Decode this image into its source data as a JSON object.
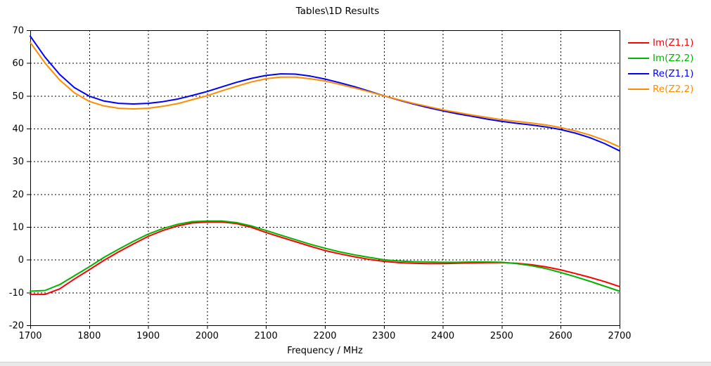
{
  "chart_data": {
    "type": "line",
    "title": "Tables\\1D Results",
    "xlabel": "Frequency / MHz",
    "ylabel": "",
    "xlim": [
      1700,
      2700
    ],
    "ylim": [
      -20,
      70
    ],
    "xticks": [
      1700,
      1800,
      1900,
      2000,
      2100,
      2200,
      2300,
      2400,
      2500,
      2600,
      2700
    ],
    "yticks": [
      70,
      60,
      50,
      40,
      30,
      20,
      10,
      0,
      -10,
      -20
    ],
    "grid": "dashed",
    "legend_position": "outside-top-right",
    "x": [
      1700,
      1725,
      1750,
      1775,
      1800,
      1825,
      1850,
      1875,
      1900,
      1925,
      1950,
      1975,
      2000,
      2025,
      2050,
      2075,
      2100,
      2125,
      2150,
      2175,
      2200,
      2225,
      2250,
      2275,
      2300,
      2325,
      2350,
      2375,
      2400,
      2425,
      2450,
      2475,
      2500,
      2525,
      2550,
      2575,
      2600,
      2625,
      2650,
      2675,
      2700
    ],
    "series": [
      {
        "name": "Im(Z1,1)",
        "color": "#ff0000",
        "values": [
          -10.6,
          -10.6,
          -8.9,
          -5.9,
          -3.1,
          -0.2,
          2.4,
          4.8,
          7.1,
          8.9,
          10.3,
          11.2,
          11.5,
          11.5,
          11.0,
          9.9,
          8.3,
          6.9,
          5.5,
          4.1,
          2.8,
          1.8,
          0.9,
          0.1,
          -0.5,
          -0.9,
          -1.1,
          -1.2,
          -1.2,
          -1.1,
          -1.0,
          -0.9,
          -0.9,
          -1.1,
          -1.5,
          -2.2,
          -3.1,
          -4.2,
          -5.4,
          -6.7,
          -8.2
        ]
      },
      {
        "name": "Im(Z2,2)",
        "color": "#00b400",
        "values": [
          -9.6,
          -9.4,
          -7.6,
          -4.9,
          -2.2,
          0.7,
          3.2,
          5.6,
          7.8,
          9.5,
          10.8,
          11.6,
          11.8,
          11.8,
          11.3,
          10.3,
          8.9,
          7.5,
          6.1,
          4.7,
          3.5,
          2.4,
          1.5,
          0.7,
          0.0,
          -0.4,
          -0.6,
          -0.7,
          -0.8,
          -0.8,
          -0.7,
          -0.7,
          -0.8,
          -1.2,
          -1.8,
          -2.7,
          -3.9,
          -5.2,
          -6.6,
          -8.1,
          -9.6
        ]
      },
      {
        "name": "Re(Z1,1)",
        "color": "#0000ff",
        "values": [
          68.2,
          61.8,
          56.5,
          52.5,
          49.9,
          48.4,
          47.7,
          47.5,
          47.7,
          48.2,
          49.0,
          50.1,
          51.3,
          52.7,
          54.1,
          55.3,
          56.2,
          56.7,
          56.6,
          56.0,
          55.1,
          54.0,
          52.8,
          51.4,
          50.0,
          48.7,
          47.5,
          46.4,
          45.4,
          44.5,
          43.7,
          42.9,
          42.2,
          41.6,
          41.1,
          40.5,
          39.7,
          38.6,
          37.2,
          35.4,
          33.2
        ]
      },
      {
        "name": "Re(Z2,2)",
        "color": "#ff8c00",
        "values": [
          66.3,
          60.0,
          54.8,
          50.9,
          48.3,
          46.9,
          46.2,
          46.0,
          46.2,
          46.8,
          47.6,
          48.8,
          50.0,
          51.5,
          52.9,
          54.2,
          55.2,
          55.7,
          55.7,
          55.2,
          54.5,
          53.5,
          52.4,
          51.2,
          50.0,
          48.8,
          47.7,
          46.7,
          45.7,
          44.9,
          44.1,
          43.4,
          42.7,
          42.2,
          41.7,
          41.1,
          40.3,
          39.3,
          38.0,
          36.4,
          34.4
        ]
      }
    ]
  }
}
